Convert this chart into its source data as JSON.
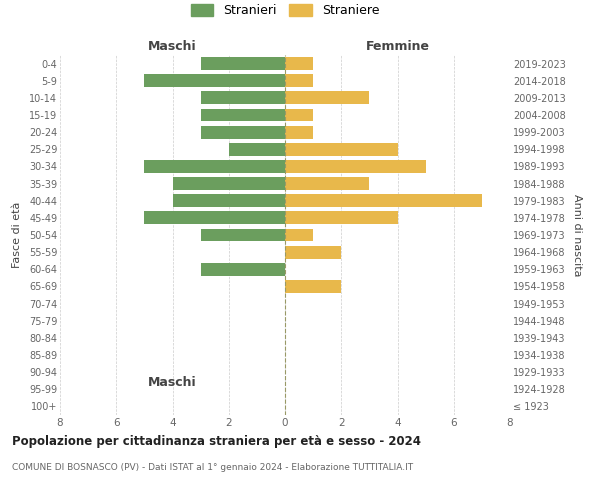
{
  "age_groups": [
    "100+",
    "95-99",
    "90-94",
    "85-89",
    "80-84",
    "75-79",
    "70-74",
    "65-69",
    "60-64",
    "55-59",
    "50-54",
    "45-49",
    "40-44",
    "35-39",
    "30-34",
    "25-29",
    "20-24",
    "15-19",
    "10-14",
    "5-9",
    "0-4"
  ],
  "birth_years": [
    "≤ 1923",
    "1924-1928",
    "1929-1933",
    "1934-1938",
    "1939-1943",
    "1944-1948",
    "1949-1953",
    "1954-1958",
    "1959-1963",
    "1964-1968",
    "1969-1973",
    "1974-1978",
    "1979-1983",
    "1984-1988",
    "1989-1993",
    "1994-1998",
    "1999-2003",
    "2004-2008",
    "2009-2013",
    "2014-2018",
    "2019-2023"
  ],
  "males": [
    0,
    0,
    0,
    0,
    0,
    0,
    0,
    0,
    3,
    0,
    3,
    5,
    4,
    4,
    5,
    2,
    3,
    3,
    3,
    5,
    3
  ],
  "females": [
    0,
    0,
    0,
    0,
    0,
    0,
    0,
    2,
    0,
    2,
    1,
    4,
    7,
    3,
    5,
    4,
    1,
    1,
    3,
    1,
    1
  ],
  "male_color": "#6b9e5e",
  "female_color": "#e8b84b",
  "background_color": "#ffffff",
  "grid_color": "#cccccc",
  "xlim": 8,
  "title_main": "Popolazione per cittadinanza straniera per età e sesso - 2024",
  "title_sub": "COMUNE DI BOSNASCO (PV) - Dati ISTAT al 1° gennaio 2024 - Elaborazione TUTTITALIA.IT",
  "left_header": "Maschi",
  "right_header": "Femmine",
  "left_ylabel": "Fasce di età",
  "right_ylabel": "Anni di nascita",
  "legend_stranieri": "Stranieri",
  "legend_straniere": "Straniere",
  "center_line_color": "#999966",
  "tick_color": "#666666",
  "axis_label_color": "#444444"
}
